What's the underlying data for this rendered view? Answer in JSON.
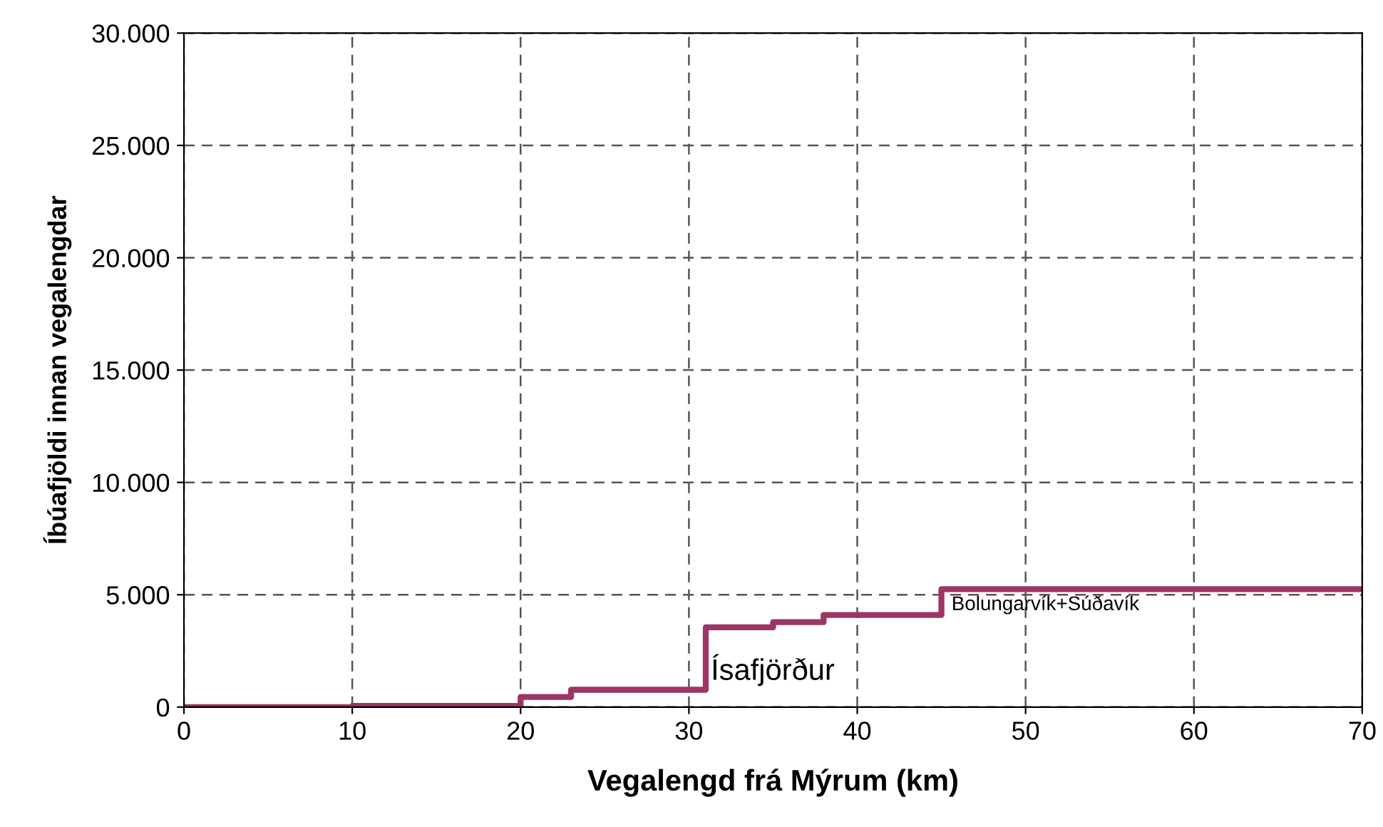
{
  "chart_data": {
    "type": "step",
    "xlabel": "Vegalengd frá Mýrum (km)",
    "ylabel": "Íbúafjöldi innan vegalengdar",
    "x": [
      0,
      10,
      20,
      23,
      31,
      35,
      38,
      45,
      70
    ],
    "series": [
      {
        "color": "#9e3566",
        "values": [
          0,
          50,
          450,
          770,
          3550,
          3780,
          4100,
          5250,
          5250
        ]
      }
    ],
    "xlim": [
      0,
      70
    ],
    "xticks": [
      0,
      10,
      20,
      30,
      40,
      50,
      60,
      70
    ],
    "ylim": [
      0,
      30000
    ],
    "yticks": [
      0,
      {
        "value": 5000,
        "label": "5.000"
      },
      {
        "value": 10000,
        "label": "10.000"
      },
      {
        "value": 15000,
        "label": "15.000"
      },
      {
        "value": 20000,
        "label": "20.000"
      },
      {
        "value": 25000,
        "label": "25.000"
      },
      {
        "value": 30000,
        "label": "30.000"
      }
    ],
    "grid": true,
    "line_style": "solid",
    "annotations": [
      {
        "text": "Ísafjörður",
        "x": 31,
        "y": 3550
      },
      {
        "text": "Bolungarvík+Súðavík",
        "x": 45,
        "y": 5250
      }
    ]
  }
}
